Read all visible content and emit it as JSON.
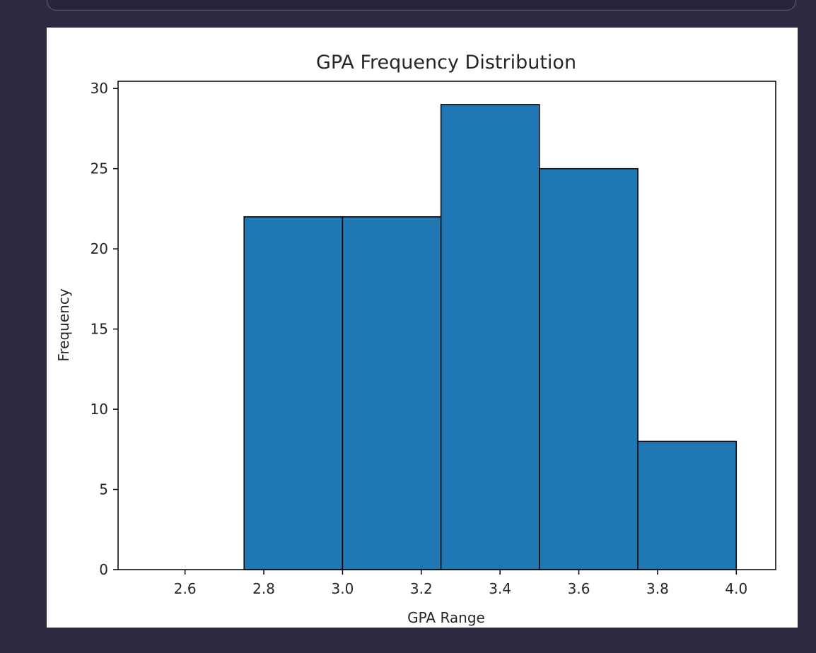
{
  "colors": {
    "background": "#2b2a40",
    "bar_fill": "#1f77b4",
    "bar_edge": "#000000"
  },
  "chart_data": {
    "type": "bar",
    "title": "GPA Frequency Distribution",
    "xlabel": "GPA Range",
    "ylabel": "Frequency",
    "bins": [
      {
        "start": 2.5,
        "end": 2.75,
        "count": 0
      },
      {
        "start": 2.75,
        "end": 3.0,
        "count": 22
      },
      {
        "start": 3.0,
        "end": 3.25,
        "count": 22
      },
      {
        "start": 3.25,
        "end": 3.5,
        "count": 29
      },
      {
        "start": 3.5,
        "end": 3.75,
        "count": 25
      },
      {
        "start": 3.75,
        "end": 4.0,
        "count": 8
      }
    ],
    "xlim": [
      2.43,
      4.1
    ],
    "ylim": [
      0,
      30.45
    ],
    "xticks": [
      "2.6",
      "2.8",
      "3.0",
      "3.2",
      "3.4",
      "3.6",
      "3.8",
      "4.0"
    ],
    "yticks": [
      "0",
      "5",
      "10",
      "15",
      "20",
      "25",
      "30"
    ],
    "grid": false,
    "legend": "none"
  }
}
